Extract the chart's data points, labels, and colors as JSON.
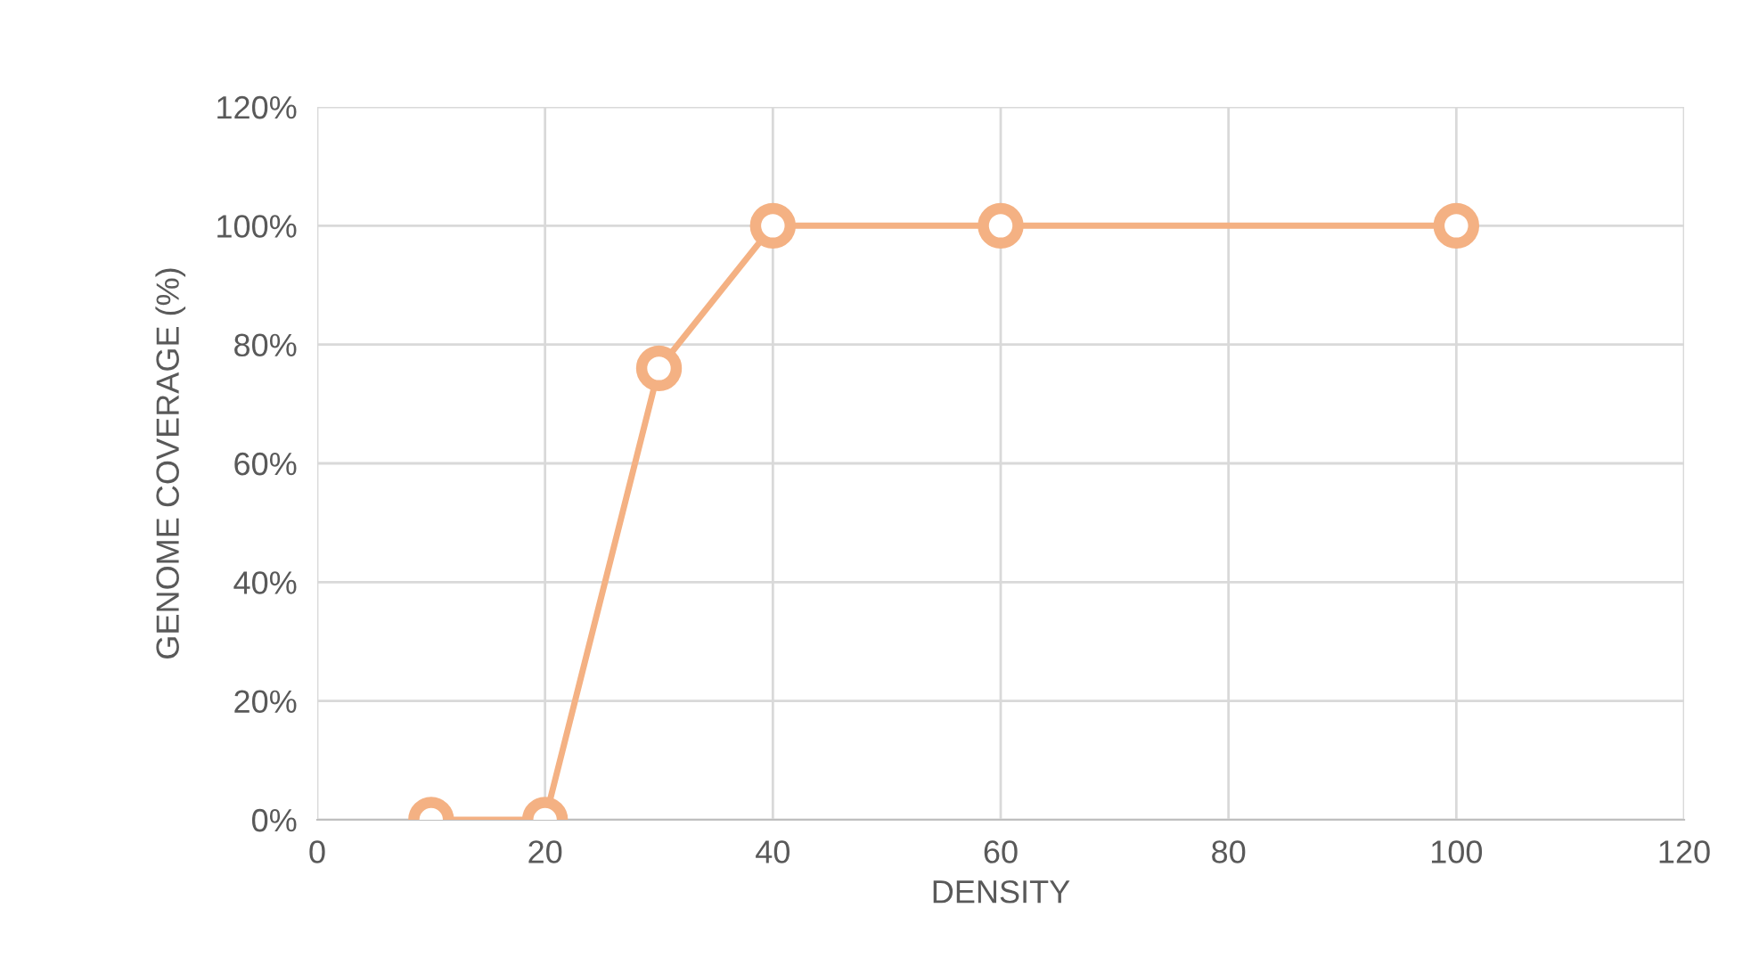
{
  "chart_data": {
    "type": "line",
    "xlabel": "DENSITY",
    "ylabel": "GENOME COVERAGE (%)",
    "x": [
      10,
      20,
      30,
      40,
      60,
      100
    ],
    "series": [
      {
        "color": "#f4b183",
        "values": [
          0,
          0,
          76,
          100,
          100,
          100
        ]
      }
    ],
    "xlim": [
      0,
      120
    ],
    "xticks": [
      0,
      20,
      40,
      60,
      80,
      100,
      120
    ],
    "ylim": [
      0,
      120
    ],
    "yticks": [
      {
        "value": 0,
        "label": "0%"
      },
      {
        "value": 20,
        "label": "20%"
      },
      {
        "value": 40,
        "label": "40%"
      },
      {
        "value": 60,
        "label": "60%"
      },
      {
        "value": 80,
        "label": "80%"
      },
      {
        "value": 100,
        "label": "100%"
      },
      {
        "value": 120,
        "label": "120%"
      }
    ],
    "grid": true,
    "marker": "circle",
    "line_style": "solid"
  }
}
